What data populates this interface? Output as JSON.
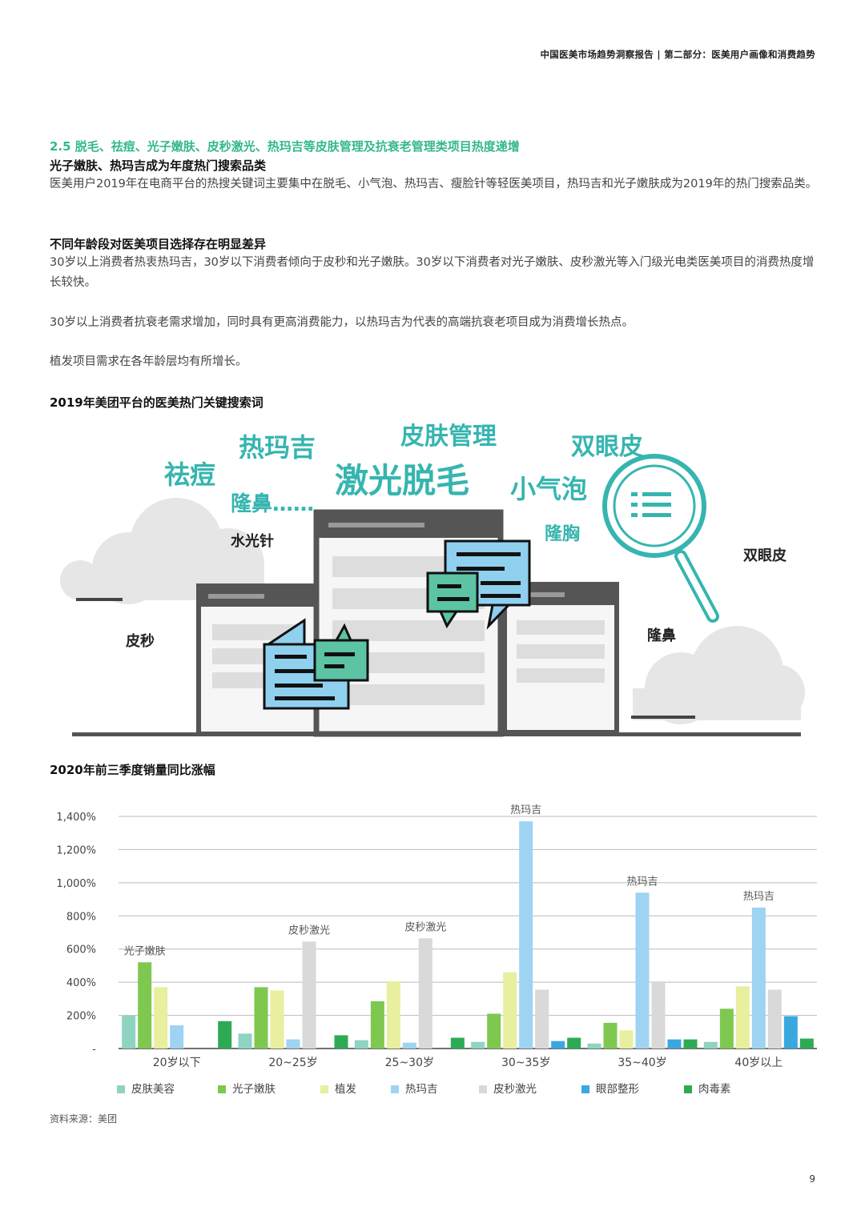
{
  "header": {
    "text": "中国医美市场趋势洞察报告 | 第二部分：医美用户画像和消费趋势"
  },
  "section": {
    "title": "2.5 脱毛、祛痘、光子嫩肤、皮秒激光、热玛吉等皮肤管理及抗衰老管理类项目热度递增",
    "h1": "光子嫩肤、热玛吉成为年度热门搜索品类",
    "p1": "医美用户2019年在电商平台的热搜关键词主要集中在脱毛、小气泡、热玛吉、瘦脸针等轻医美项目，热玛吉和光子嫩肤成为2019年的热门搜索品类。",
    "h2": "不同年龄段对医美项目选择存在明显差异",
    "p2": "30岁以上消费者热衷热玛吉，30岁以下消费者倾向于皮秒和光子嫩肤。30岁以下消费者对光子嫩肤、皮秒激光等入门级光电类医美项目的消费热度增长较快。",
    "p3": "30岁以上消费者抗衰老需求增加，同时具有更高消费能力，以热玛吉为代表的高端抗衰老项目成为消费增长热点。",
    "p4": "植发项目需求在各年龄层均有所增长。"
  },
  "illustration": {
    "caption": "2019年美团平台的医美热门关键搜索词",
    "words_teal": [
      "热玛吉",
      "皮肤管理",
      "双眼皮",
      "祛痘",
      "激光脱毛",
      "小气泡",
      "隆鼻……",
      "隆胸"
    ],
    "words_dark": [
      "水光针",
      "双眼皮",
      "皮秒",
      "隆鼻"
    ],
    "colors": {
      "teal": "#36b5b0",
      "mint": "#5cc3a5",
      "blue": "#8fd0ef",
      "frame": "#555555"
    }
  },
  "chart_caption": "2020年前三季度销量同比涨幅",
  "chart_data": {
    "type": "bar",
    "categories": [
      "20岁以下",
      "20~25岁",
      "25~30岁",
      "30~35岁",
      "35~40岁",
      "40岁以上"
    ],
    "y_ticks": [
      "-",
      "200%",
      "400%",
      "600%",
      "800%",
      "1,000%",
      "1,200%",
      "1,400%"
    ],
    "ylim": [
      0,
      1400
    ],
    "series": [
      {
        "name": "皮肤美容",
        "color": "#8fd3c2",
        "values": [
          200,
          90,
          50,
          40,
          30,
          40
        ]
      },
      {
        "name": "光子嫩肤",
        "color": "#7ec850",
        "values": [
          520,
          370,
          285,
          210,
          155,
          240
        ]
      },
      {
        "name": "植发",
        "color": "#e8ef9f",
        "values": [
          370,
          350,
          405,
          460,
          110,
          375
        ]
      },
      {
        "name": "热玛吉",
        "color": "#9ed3f2",
        "values": [
          140,
          55,
          35,
          1370,
          940,
          850
        ]
      },
      {
        "name": "皮秒激光",
        "color": "#d9d9d9",
        "values": [
          0,
          645,
          665,
          355,
          405,
          355
        ]
      },
      {
        "name": "眼部整形",
        "color": "#3aa8df",
        "values": [
          0,
          0,
          0,
          45,
          55,
          195
        ]
      },
      {
        "name": "肉毒素",
        "color": "#2eaa55",
        "values": [
          165,
          80,
          65,
          65,
          55,
          60
        ]
      }
    ],
    "annotations": [
      {
        "group": 0,
        "series": 1,
        "text": "光子嫩肤"
      },
      {
        "group": 1,
        "series": 4,
        "text": "皮秒激光"
      },
      {
        "group": 2,
        "series": 4,
        "text": "皮秒激光"
      },
      {
        "group": 3,
        "series": 3,
        "text": "热玛吉"
      },
      {
        "group": 4,
        "series": 3,
        "text": "热玛吉"
      },
      {
        "group": 5,
        "series": 3,
        "text": "热玛吉"
      }
    ],
    "grid": true,
    "legend": "bottom"
  },
  "source": "资料来源：美团",
  "page_number": "9"
}
